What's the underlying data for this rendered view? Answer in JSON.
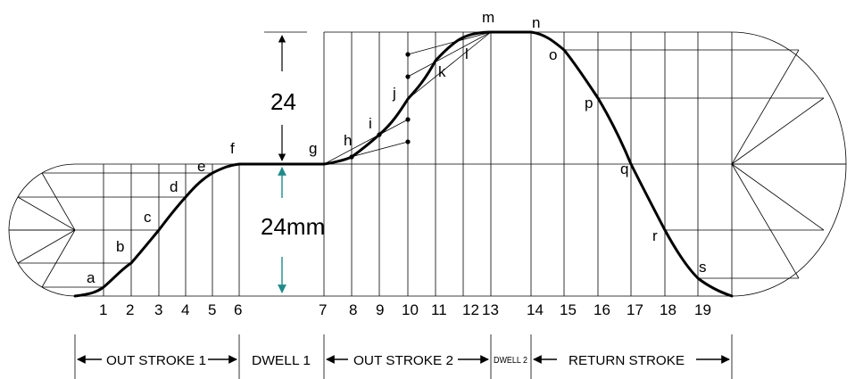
{
  "curve_points": [
    "a",
    "b",
    "c",
    "d",
    "e",
    "f",
    "g",
    "h",
    "i",
    "j",
    "k",
    "l",
    "m",
    "n",
    "o",
    "p",
    "q",
    "r",
    "s"
  ],
  "divisions": [
    "1",
    "2",
    "3",
    "4",
    "5",
    "6",
    "7",
    "8",
    "9",
    "10",
    "11",
    "12",
    "13",
    "14",
    "15",
    "16",
    "17",
    "18",
    "19"
  ],
  "dimensions": {
    "lift": "24",
    "lift_mm": "24mm"
  },
  "segments": {
    "outstroke_1": "OUT STROKE 1",
    "dwell_1": "DWELL 1",
    "outstroke_2": "OUT STROKE 2",
    "dwell_2": "DWELL 2",
    "return_stroke": "RETURN STROKE"
  },
  "colors": {
    "lines": "#000000",
    "dimension_arrow": "#1f8a8a"
  }
}
